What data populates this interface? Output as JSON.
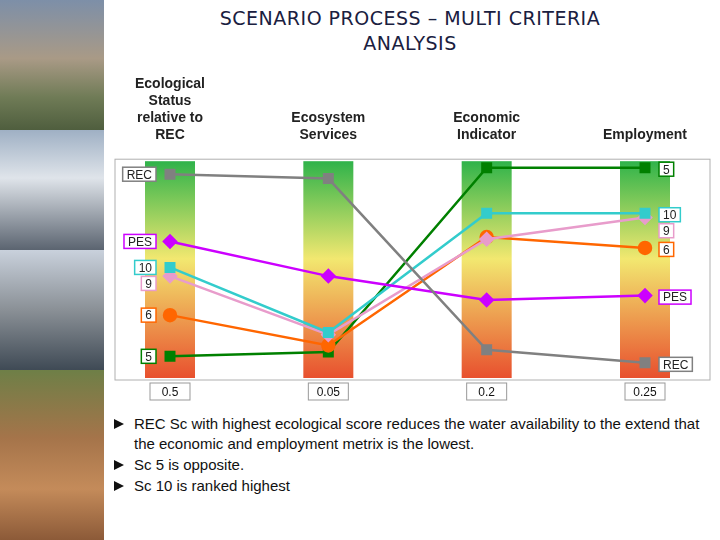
{
  "title": "SCENARIO PROCESS – MULTI CRITERIA ANALYSIS",
  "bullets": [
    "REC Sc with highest ecological score reduces the water availability to the extend that the economic and employment metrix is the lowest.",
    "Sc 5 is opposite.",
    "Sc 10 is ranked highest"
  ],
  "chart_data": {
    "type": "line",
    "categories": [
      "Ecological Status relative to REC",
      "Ecosystem Services",
      "Economic Indicator",
      "Employment"
    ],
    "series": [
      {
        "name": "REC",
        "color": "#808080",
        "marker": "square",
        "values": [
          0.94,
          0.92,
          0.13,
          0.07
        ]
      },
      {
        "name": "PES",
        "color": "#cc00ff",
        "marker": "diamond",
        "values": [
          0.63,
          0.47,
          0.36,
          0.38
        ]
      },
      {
        "name": "10",
        "color": "#33cccc",
        "marker": "square",
        "values": [
          0.51,
          0.21,
          0.76,
          0.76
        ]
      },
      {
        "name": "9",
        "color": "#e89ccb",
        "marker": "diamond",
        "values": [
          0.47,
          0.2,
          0.64,
          0.74
        ]
      },
      {
        "name": "6",
        "color": "#ff6600",
        "marker": "circle",
        "values": [
          0.29,
          0.15,
          0.65,
          0.6
        ]
      },
      {
        "name": "5",
        "color": "#008000",
        "marker": "square",
        "values": [
          0.1,
          0.12,
          0.97,
          0.97
        ]
      }
    ],
    "weights": [
      0.5,
      0.05,
      0.2,
      0.25
    ],
    "ylim": [
      0,
      1
    ],
    "tick_labels": false,
    "grid": false
  }
}
